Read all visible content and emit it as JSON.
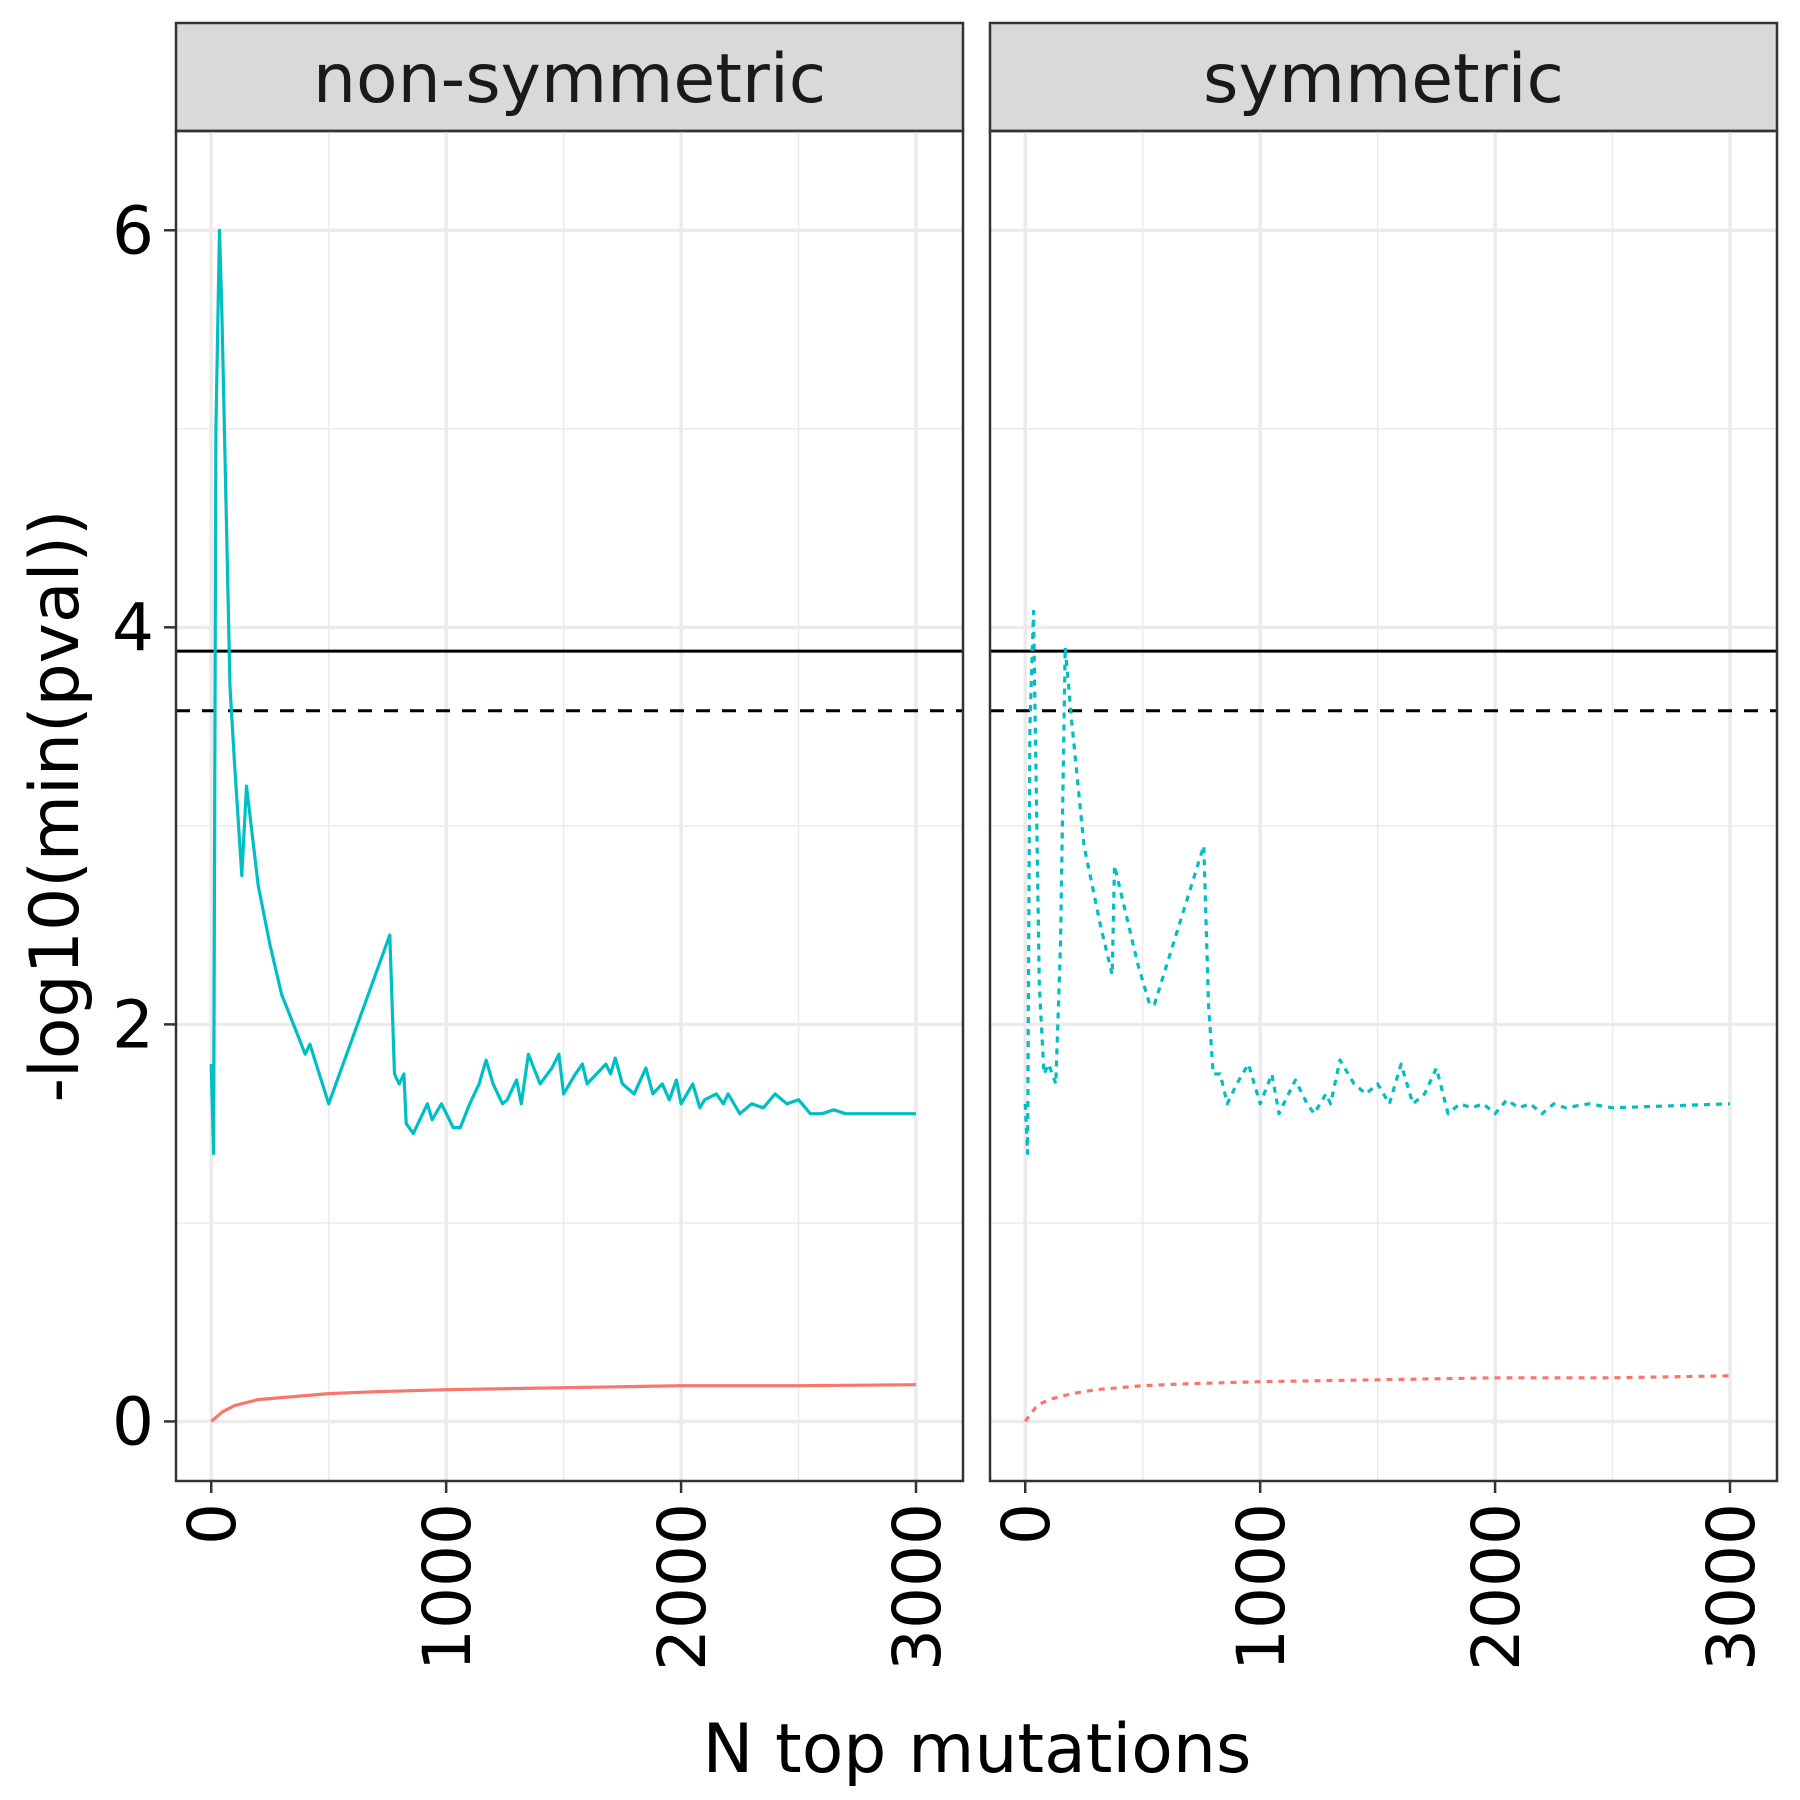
{
  "chart_data": {
    "type": "line",
    "xlabel": "N top mutations",
    "ylabel": "-log10(min(pval))",
    "xlim": [
      -150,
      3200
    ],
    "ylim": [
      -0.3,
      6.5
    ],
    "x_ticks": [
      "0",
      "1000",
      "2000",
      "3000"
    ],
    "y_ticks": [
      "0",
      "2",
      "4",
      "6"
    ],
    "grid": true,
    "reference_lines": [
      {
        "y": 3.88,
        "style": "solid",
        "color": "#000000"
      },
      {
        "y": 3.58,
        "style": "dashed",
        "color": "#000000"
      }
    ],
    "colors": {
      "red": "#F8766D",
      "teal": "#00BFC4"
    },
    "panels": [
      {
        "title": "non-symmetric",
        "linestyle": "solid",
        "series": [
          {
            "color": "#00BFC4",
            "points": [
              [
                0,
                1.8
              ],
              [
                10,
                1.35
              ],
              [
                20,
                5.0
              ],
              [
                35,
                6.0
              ],
              [
                45,
                5.6
              ],
              [
                80,
                3.7
              ],
              [
                100,
                3.3
              ],
              [
                130,
                2.75
              ],
              [
                150,
                3.2
              ],
              [
                170,
                3.0
              ],
              [
                200,
                2.7
              ],
              [
                250,
                2.4
              ],
              [
                300,
                2.15
              ],
              [
                350,
                2.0
              ],
              [
                400,
                1.85
              ],
              [
                420,
                1.9
              ],
              [
                500,
                1.6
              ],
              [
                760,
                2.45
              ],
              [
                780,
                1.75
              ],
              [
                800,
                1.7
              ],
              [
                820,
                1.75
              ],
              [
                830,
                1.5
              ],
              [
                860,
                1.45
              ],
              [
                880,
                1.5
              ],
              [
                920,
                1.6
              ],
              [
                940,
                1.52
              ],
              [
                980,
                1.6
              ],
              [
                1030,
                1.48
              ],
              [
                1060,
                1.48
              ],
              [
                1100,
                1.6
              ],
              [
                1140,
                1.7
              ],
              [
                1170,
                1.82
              ],
              [
                1200,
                1.7
              ],
              [
                1240,
                1.6
              ],
              [
                1260,
                1.62
              ],
              [
                1300,
                1.72
              ],
              [
                1320,
                1.6
              ],
              [
                1350,
                1.85
              ],
              [
                1400,
                1.7
              ],
              [
                1450,
                1.78
              ],
              [
                1480,
                1.85
              ],
              [
                1500,
                1.65
              ],
              [
                1550,
                1.75
              ],
              [
                1580,
                1.8
              ],
              [
                1600,
                1.7
              ],
              [
                1640,
                1.75
              ],
              [
                1680,
                1.8
              ],
              [
                1700,
                1.75
              ],
              [
                1720,
                1.83
              ],
              [
                1750,
                1.7
              ],
              [
                1800,
                1.65
              ],
              [
                1850,
                1.78
              ],
              [
                1880,
                1.65
              ],
              [
                1920,
                1.7
              ],
              [
                1950,
                1.62
              ],
              [
                1980,
                1.72
              ],
              [
                2000,
                1.6
              ],
              [
                2050,
                1.7
              ],
              [
                2080,
                1.58
              ],
              [
                2100,
                1.62
              ],
              [
                2150,
                1.65
              ],
              [
                2180,
                1.6
              ],
              [
                2200,
                1.65
              ],
              [
                2250,
                1.55
              ],
              [
                2300,
                1.6
              ],
              [
                2350,
                1.58
              ],
              [
                2400,
                1.65
              ],
              [
                2450,
                1.6
              ],
              [
                2500,
                1.62
              ],
              [
                2550,
                1.55
              ],
              [
                2600,
                1.55
              ],
              [
                2650,
                1.57
              ],
              [
                2700,
                1.55
              ],
              [
                2800,
                1.55
              ],
              [
                3000,
                1.55
              ]
            ]
          },
          {
            "color": "#F8766D",
            "points": [
              [
                0,
                0.0
              ],
              [
                50,
                0.05
              ],
              [
                100,
                0.08
              ],
              [
                200,
                0.11
              ],
              [
                300,
                0.12
              ],
              [
                400,
                0.13
              ],
              [
                500,
                0.14
              ],
              [
                700,
                0.15
              ],
              [
                1000,
                0.16
              ],
              [
                1500,
                0.17
              ],
              [
                2000,
                0.18
              ],
              [
                2500,
                0.18
              ],
              [
                3000,
                0.185
              ]
            ]
          }
        ]
      },
      {
        "title": "symmetric",
        "linestyle": "dotted",
        "series": [
          {
            "color": "#00BFC4",
            "points": [
              [
                0,
                1.6
              ],
              [
                10,
                1.35
              ],
              [
                20,
                3.5
              ],
              [
                35,
                4.08
              ],
              [
                60,
                2.2
              ],
              [
                80,
                1.75
              ],
              [
                100,
                1.8
              ],
              [
                130,
                1.7
              ],
              [
                150,
                2.4
              ],
              [
                170,
                3.9
              ],
              [
                200,
                3.5
              ],
              [
                250,
                2.9
              ],
              [
                320,
                2.5
              ],
              [
                370,
                2.25
              ],
              [
                380,
                2.8
              ],
              [
                420,
                2.6
              ],
              [
                480,
                2.3
              ],
              [
                530,
                2.1
              ],
              [
                550,
                2.1
              ],
              [
                760,
                2.9
              ],
              [
                780,
                2.1
              ],
              [
                800,
                1.75
              ],
              [
                830,
                1.75
              ],
              [
                860,
                1.6
              ],
              [
                900,
                1.7
              ],
              [
                950,
                1.8
              ],
              [
                1000,
                1.6
              ],
              [
                1050,
                1.75
              ],
              [
                1080,
                1.55
              ],
              [
                1100,
                1.6
              ],
              [
                1150,
                1.72
              ],
              [
                1200,
                1.6
              ],
              [
                1230,
                1.55
              ],
              [
                1280,
                1.65
              ],
              [
                1300,
                1.6
              ],
              [
                1340,
                1.82
              ],
              [
                1400,
                1.7
              ],
              [
                1450,
                1.65
              ],
              [
                1500,
                1.7
              ],
              [
                1550,
                1.6
              ],
              [
                1600,
                1.8
              ],
              [
                1650,
                1.6
              ],
              [
                1700,
                1.65
              ],
              [
                1750,
                1.78
              ],
              [
                1800,
                1.55
              ],
              [
                1850,
                1.6
              ],
              [
                1900,
                1.58
              ],
              [
                1950,
                1.6
              ],
              [
                2000,
                1.55
              ],
              [
                2050,
                1.62
              ],
              [
                2100,
                1.58
              ],
              [
                2150,
                1.6
              ],
              [
                2200,
                1.55
              ],
              [
                2250,
                1.6
              ],
              [
                2300,
                1.58
              ],
              [
                2400,
                1.6
              ],
              [
                2500,
                1.58
              ],
              [
                3000,
                1.6
              ]
            ]
          },
          {
            "color": "#F8766D",
            "points": [
              [
                0,
                0.0
              ],
              [
                50,
                0.08
              ],
              [
                100,
                0.11
              ],
              [
                200,
                0.14
              ],
              [
                300,
                0.16
              ],
              [
                500,
                0.18
              ],
              [
                700,
                0.19
              ],
              [
                1000,
                0.2
              ],
              [
                1500,
                0.21
              ],
              [
                2000,
                0.22
              ],
              [
                2500,
                0.22
              ],
              [
                3000,
                0.23
              ]
            ]
          }
        ]
      }
    ]
  }
}
